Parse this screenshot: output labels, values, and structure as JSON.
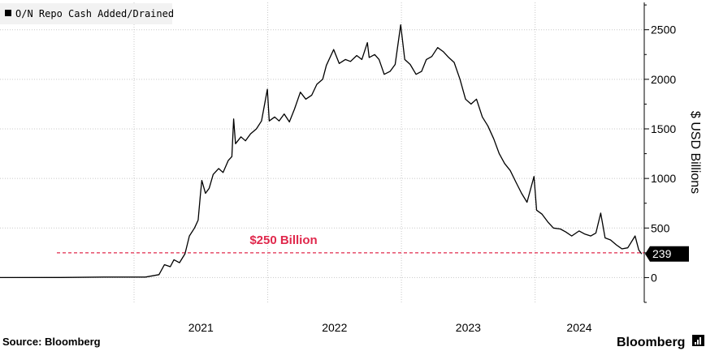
{
  "chart_data": {
    "type": "line",
    "legend": "O/N Repo Cash Added/Drained",
    "legend_placement": "top-left",
    "ylabel": "$ USD Billions",
    "ylim": [
      -250,
      2800
    ],
    "yticks": [
      0,
      500,
      1000,
      1500,
      2000,
      2500
    ],
    "y_axis_side": "right",
    "x_tick_labels": [
      "2021",
      "2022",
      "2023",
      "2024"
    ],
    "x_tick_dates": [
      "2021-01-01",
      "2022-01-01",
      "2023-01-01",
      "2024-01-01"
    ],
    "xlim": [
      "2020-01-01",
      "2024-10-25"
    ],
    "grid": true,
    "series": [
      {
        "color": "#000000",
        "points": [
          [
            "2020-01-01",
            0
          ],
          [
            "2020-06-15",
            1
          ],
          [
            "2020-10-15",
            5
          ],
          [
            "2021-02-01",
            5
          ],
          [
            "2021-03-10",
            30
          ],
          [
            "2021-03-25",
            130
          ],
          [
            "2021-04-10",
            110
          ],
          [
            "2021-04-20",
            180
          ],
          [
            "2021-05-05",
            150
          ],
          [
            "2021-05-20",
            240
          ],
          [
            "2021-06-01",
            420
          ],
          [
            "2021-06-15",
            500
          ],
          [
            "2021-06-25",
            580
          ],
          [
            "2021-07-01",
            830
          ],
          [
            "2021-07-05",
            980
          ],
          [
            "2021-07-15",
            850
          ],
          [
            "2021-07-25",
            900
          ],
          [
            "2021-08-05",
            1040
          ],
          [
            "2021-08-20",
            1100
          ],
          [
            "2021-09-01",
            1060
          ],
          [
            "2021-09-15",
            1180
          ],
          [
            "2021-09-25",
            1220
          ],
          [
            "2021-09-30",
            1600
          ],
          [
            "2021-10-05",
            1350
          ],
          [
            "2021-10-20",
            1420
          ],
          [
            "2021-11-01",
            1380
          ],
          [
            "2021-11-15",
            1450
          ],
          [
            "2021-12-01",
            1500
          ],
          [
            "2021-12-15",
            1580
          ],
          [
            "2021-12-31",
            1900
          ],
          [
            "2022-01-05",
            1580
          ],
          [
            "2022-01-20",
            1620
          ],
          [
            "2022-02-01",
            1580
          ],
          [
            "2022-02-15",
            1650
          ],
          [
            "2022-03-01",
            1570
          ],
          [
            "2022-03-15",
            1700
          ],
          [
            "2022-03-31",
            1870
          ],
          [
            "2022-04-15",
            1800
          ],
          [
            "2022-05-01",
            1840
          ],
          [
            "2022-05-15",
            1950
          ],
          [
            "2022-05-31",
            2000
          ],
          [
            "2022-06-10",
            2140
          ],
          [
            "2022-06-30",
            2300
          ],
          [
            "2022-07-15",
            2160
          ],
          [
            "2022-08-01",
            2200
          ],
          [
            "2022-08-15",
            2180
          ],
          [
            "2022-09-01",
            2240
          ],
          [
            "2022-09-15",
            2200
          ],
          [
            "2022-09-30",
            2370
          ],
          [
            "2022-10-05",
            2220
          ],
          [
            "2022-10-20",
            2250
          ],
          [
            "2022-11-01",
            2200
          ],
          [
            "2022-11-15",
            2050
          ],
          [
            "2022-12-01",
            2080
          ],
          [
            "2022-12-15",
            2150
          ],
          [
            "2022-12-30",
            2550
          ],
          [
            "2023-01-10",
            2200
          ],
          [
            "2023-01-25",
            2150
          ],
          [
            "2023-02-10",
            2050
          ],
          [
            "2023-02-25",
            2080
          ],
          [
            "2023-03-10",
            2200
          ],
          [
            "2023-03-25",
            2230
          ],
          [
            "2023-04-10",
            2320
          ],
          [
            "2023-04-25",
            2280
          ],
          [
            "2023-05-10",
            2220
          ],
          [
            "2023-05-25",
            2170
          ],
          [
            "2023-06-10",
            2000
          ],
          [
            "2023-06-25",
            1800
          ],
          [
            "2023-07-10",
            1750
          ],
          [
            "2023-07-25",
            1800
          ],
          [
            "2023-08-10",
            1620
          ],
          [
            "2023-08-25",
            1530
          ],
          [
            "2023-09-10",
            1400
          ],
          [
            "2023-09-25",
            1250
          ],
          [
            "2023-10-10",
            1150
          ],
          [
            "2023-10-25",
            1080
          ],
          [
            "2023-11-10",
            960
          ],
          [
            "2023-11-25",
            850
          ],
          [
            "2023-12-10",
            760
          ],
          [
            "2023-12-29",
            1020
          ],
          [
            "2024-01-05",
            680
          ],
          [
            "2024-01-20",
            640
          ],
          [
            "2024-02-05",
            560
          ],
          [
            "2024-02-20",
            500
          ],
          [
            "2024-03-10",
            490
          ],
          [
            "2024-03-25",
            460
          ],
          [
            "2024-04-10",
            420
          ],
          [
            "2024-04-30",
            470
          ],
          [
            "2024-05-15",
            440
          ],
          [
            "2024-06-01",
            420
          ],
          [
            "2024-06-15",
            450
          ],
          [
            "2024-06-28",
            650
          ],
          [
            "2024-07-10",
            400
          ],
          [
            "2024-07-25",
            380
          ],
          [
            "2024-08-10",
            330
          ],
          [
            "2024-08-25",
            290
          ],
          [
            "2024-09-10",
            300
          ],
          [
            "2024-09-30",
            420
          ],
          [
            "2024-10-10",
            280
          ],
          [
            "2024-10-18",
            239
          ]
        ]
      }
    ],
    "threshold_line": {
      "value": 250,
      "label": "$250 Billion",
      "color": "#e0284c"
    },
    "last_value_label": "239"
  },
  "footer": {
    "source": "Source: Bloomberg",
    "brand": "Bloomberg"
  }
}
